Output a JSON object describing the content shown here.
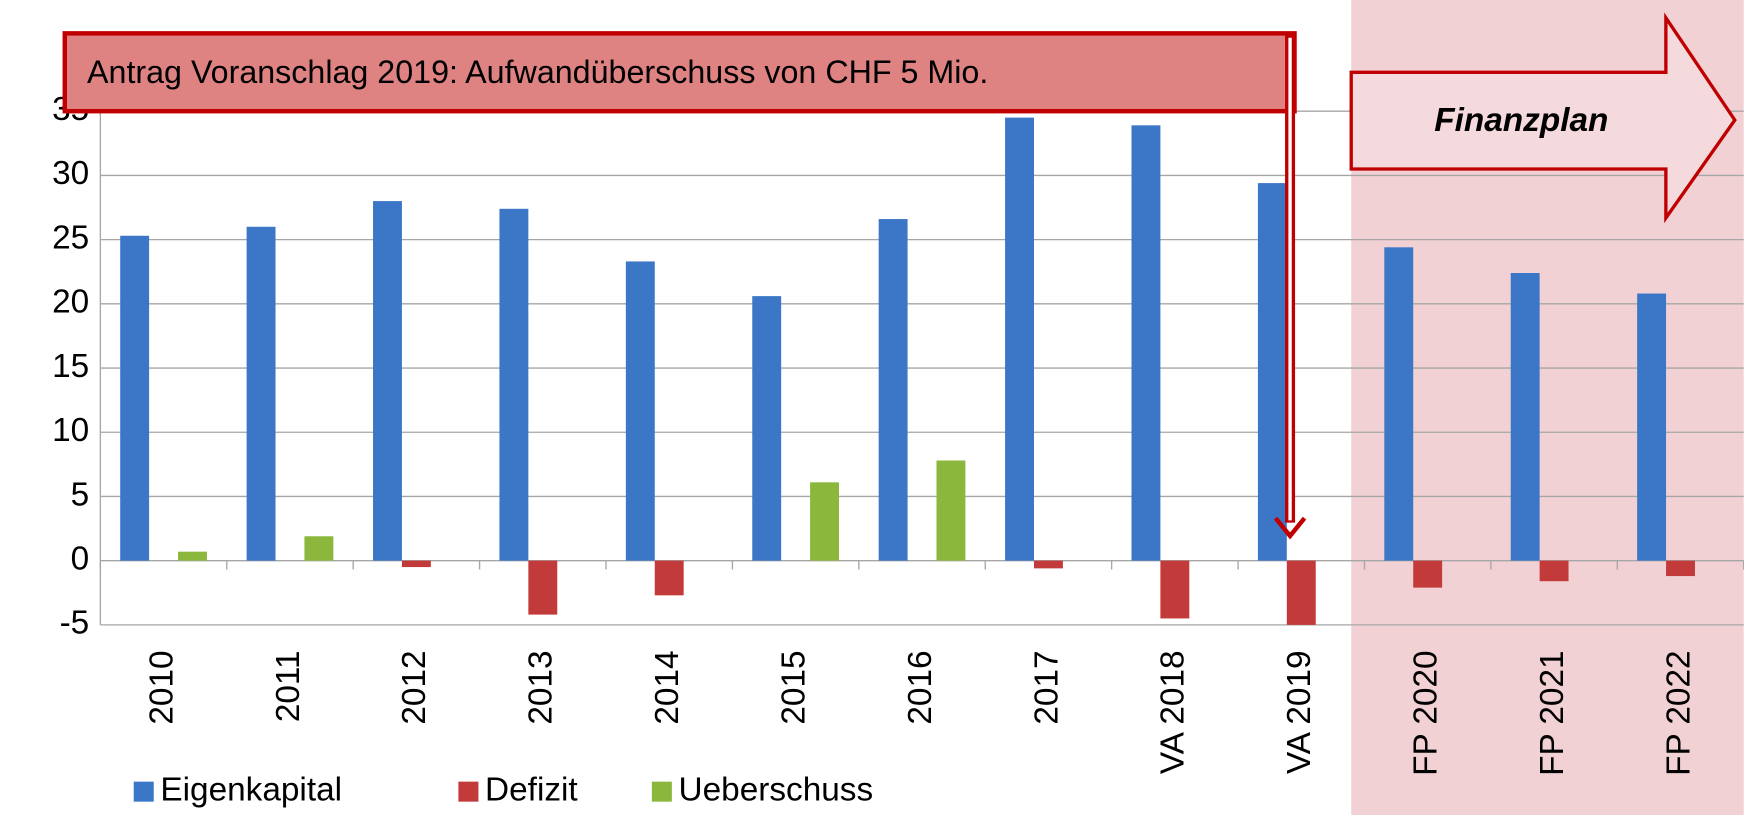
{
  "chart_data": {
    "type": "bar",
    "categories": [
      "2010",
      "2011",
      "2012",
      "2013",
      "2014",
      "2015",
      "2016",
      "2017",
      "VA 2018",
      "VA 2019",
      "FP 2020",
      "FP 2021",
      "FP 2022"
    ],
    "series": [
      {
        "name": "Eigenkapital",
        "color": "#3b77c6",
        "values": [
          25.3,
          26,
          28,
          27.4,
          23.3,
          20.6,
          26.6,
          34.5,
          33.9,
          29.4,
          24.4,
          22.4,
          20.8
        ]
      },
      {
        "name": "Defizit",
        "color": "#c23a3a",
        "values": [
          null,
          null,
          -0.5,
          -4.2,
          -2.7,
          null,
          null,
          -0.6,
          -4.5,
          -5.0,
          -2.1,
          -1.6,
          -1.2
        ]
      },
      {
        "name": "Ueberschuss",
        "color": "#8bb83c",
        "values": [
          0.7,
          1.9,
          null,
          null,
          null,
          6.1,
          7.8,
          null,
          null,
          null,
          null,
          null,
          null
        ]
      }
    ],
    "ylim": [
      -5,
      35
    ],
    "yticks": [
      -5,
      0,
      5,
      10,
      15,
      20,
      25,
      30,
      35
    ],
    "grid": true,
    "annotations": [
      "Antrag Voranschlag 2019: Aufwandüberschuss von CHF 5 Mio.",
      "Finanzplan"
    ]
  }
}
